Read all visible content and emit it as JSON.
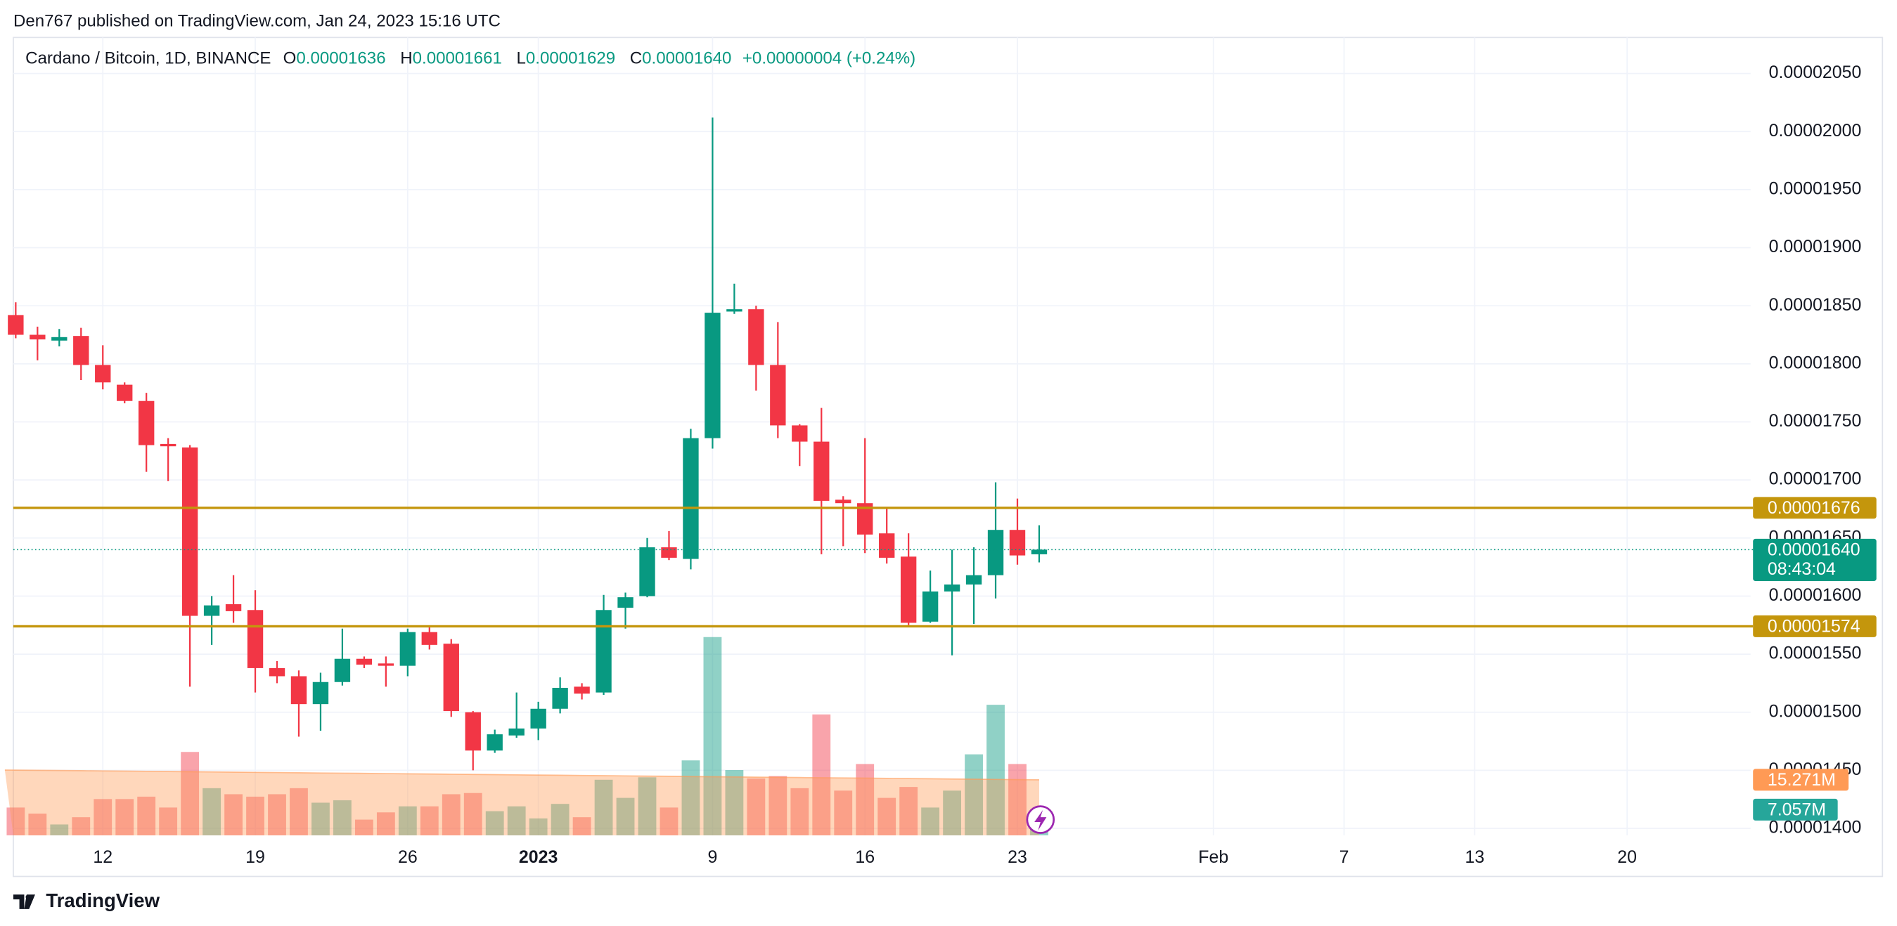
{
  "header": {
    "text": "Den767 published on TradingView.com, Jan 24, 2023 15:16 UTC"
  },
  "footer": {
    "brand": "TradingView"
  },
  "chart_data": {
    "type": "candlestick",
    "legend": {
      "symbol": "Cardano / Bitcoin, 1D, BINANCE",
      "items": [
        {
          "key": "O",
          "value": "0.00001636"
        },
        {
          "key": "H",
          "value": "0.00001661"
        },
        {
          "key": "L",
          "value": "0.00001629"
        },
        {
          "key": "C",
          "value": "0.00001640"
        }
      ],
      "change": "+0.00000004 (+0.24%)"
    },
    "colors": {
      "up": "#089981",
      "down": "#f23645",
      "level": "#c4960c",
      "volume_ma": "#ff9a55"
    },
    "grid": true,
    "x": [
      0,
      1,
      2,
      3,
      4,
      5,
      6,
      7,
      8,
      9,
      10,
      11,
      12,
      13,
      14,
      15,
      16,
      17,
      18,
      19,
      20,
      21,
      22,
      23,
      24,
      25,
      26,
      27,
      28,
      29,
      30,
      31,
      32,
      33,
      34,
      35,
      36,
      37,
      38,
      39,
      40,
      41,
      42,
      43,
      44,
      45,
      46,
      47
    ],
    "open": [
      1.842e-05,
      1.825e-05,
      1.82e-05,
      1.824e-05,
      1.799e-05,
      1.782e-05,
      1.768e-05,
      1.731e-05,
      1.728e-05,
      1.583e-05,
      1.593e-05,
      1.588e-05,
      1.538e-05,
      1.531e-05,
      1.507e-05,
      1.526e-05,
      1.546e-05,
      1.542e-05,
      1.54e-05,
      1.569e-05,
      1.559e-05,
      1.5e-05,
      1.467e-05,
      1.48e-05,
      1.486e-05,
      1.503e-05,
      1.522e-05,
      1.517e-05,
      1.59e-05,
      1.6e-05,
      1.642e-05,
      1.632e-05,
      1.736e-05,
      1.845e-05,
      1.847e-05,
      1.799e-05,
      1.747e-05,
      1.733e-05,
      1.683e-05,
      1.68e-05,
      1.654e-05,
      1.634e-05,
      1.578e-05,
      1.604e-05,
      1.61e-05,
      1.618e-05,
      1.657e-05,
      1.636e-05
    ],
    "high": [
      1.853e-05,
      1.832e-05,
      1.83e-05,
      1.831e-05,
      1.816e-05,
      1.784e-05,
      1.775e-05,
      1.736e-05,
      1.73e-05,
      1.6e-05,
      1.618e-05,
      1.605e-05,
      1.544e-05,
      1.536e-05,
      1.534e-05,
      1.572e-05,
      1.548e-05,
      1.548e-05,
      1.572e-05,
      1.573e-05,
      1.563e-05,
      1.501e-05,
      1.485e-05,
      1.517e-05,
      1.509e-05,
      1.53e-05,
      1.525e-05,
      1.601e-05,
      1.603e-05,
      1.65e-05,
      1.656e-05,
      1.744e-05,
      2.012e-05,
      1.869e-05,
      1.85e-05,
      1.836e-05,
      1.748e-05,
      1.762e-05,
      1.686e-05,
      1.736e-05,
      1.676e-05,
      1.654e-05,
      1.622e-05,
      1.64e-05,
      1.642e-05,
      1.698e-05,
      1.684e-05,
      1.661e-05
    ],
    "low": [
      1.822e-05,
      1.803e-05,
      1.815e-05,
      1.786e-05,
      1.778e-05,
      1.766e-05,
      1.707e-05,
      1.699e-05,
      1.522e-05,
      1.558e-05,
      1.577e-05,
      1.517e-05,
      1.525e-05,
      1.479e-05,
      1.484e-05,
      1.523e-05,
      1.538e-05,
      1.522e-05,
      1.531e-05,
      1.554e-05,
      1.496e-05,
      1.45e-05,
      1.465e-05,
      1.478e-05,
      1.476e-05,
      1.499e-05,
      1.511e-05,
      1.515e-05,
      1.572e-05,
      1.599e-05,
      1.631e-05,
      1.623e-05,
      1.727e-05,
      1.843e-05,
      1.777e-05,
      1.736e-05,
      1.712e-05,
      1.636e-05,
      1.643e-05,
      1.637e-05,
      1.628e-05,
      1.575e-05,
      1.577e-05,
      1.549e-05,
      1.576e-05,
      1.598e-05,
      1.627e-05,
      1.629e-05
    ],
    "close": [
      1.825e-05,
      1.821e-05,
      1.823e-05,
      1.799e-05,
      1.784e-05,
      1.768e-05,
      1.73e-05,
      1.729e-05,
      1.583e-05,
      1.592e-05,
      1.587e-05,
      1.538e-05,
      1.531e-05,
      1.507e-05,
      1.526e-05,
      1.546e-05,
      1.541e-05,
      1.54e-05,
      1.569e-05,
      1.558e-05,
      1.501e-05,
      1.467e-05,
      1.481e-05,
      1.486e-05,
      1.503e-05,
      1.521e-05,
      1.516e-05,
      1.588e-05,
      1.599e-05,
      1.642e-05,
      1.633e-05,
      1.736e-05,
      1.844e-05,
      1.847e-05,
      1.799e-05,
      1.747e-05,
      1.733e-05,
      1.682e-05,
      1.68e-05,
      1.653e-05,
      1.633e-05,
      1.577e-05,
      1.604e-05,
      1.61e-05,
      1.618e-05,
      1.657e-05,
      1.635e-05,
      1.64e-05
    ],
    "volume": [
      7.64,
      5.98,
      2.99,
      4.98,
      9.97,
      9.97,
      10.63,
      7.64,
      22.92,
      12.96,
      11.3,
      10.63,
      11.3,
      12.96,
      8.97,
      9.63,
      4.32,
      6.31,
      7.97,
      7.97,
      11.3,
      11.63,
      6.64,
      7.97,
      4.65,
      8.64,
      4.98,
      15.28,
      10.3,
      15.95,
      7.64,
      20.6,
      54.49,
      17.94,
      15.61,
      16.28,
      12.96,
      33.22,
      12.29,
      19.6,
      10.3,
      13.29,
      7.64,
      12.29,
      22.26,
      35.88,
      19.6,
      7.057
    ],
    "volume_ma": [
      17.94,
      17.88,
      17.83,
      17.77,
      17.71,
      17.66,
      17.6,
      17.54,
      17.48,
      17.43,
      17.37,
      17.31,
      17.26,
      17.2,
      17.14,
      17.09,
      17.03,
      16.97,
      16.91,
      16.86,
      16.8,
      16.74,
      16.69,
      16.63,
      16.57,
      16.52,
      16.46,
      16.4,
      16.34,
      16.29,
      16.23,
      16.17,
      16.12,
      16.06,
      16.0,
      15.95,
      15.89,
      15.83,
      15.77,
      15.72,
      15.66,
      15.6,
      15.55,
      15.49,
      15.43,
      15.38,
      15.32,
      15.271
    ],
    "volume_ma_badge": {
      "value": 15.271,
      "label": "15.271M"
    },
    "volume_badge": {
      "value": 7.057,
      "label": "7.057M"
    },
    "levels": [
      1.676e-05,
      1.574e-05
    ],
    "last_price": {
      "value": 1.64e-05,
      "label": "0.00001640"
    },
    "countdown": "08:43:04",
    "xlim": [
      -0.11,
      79.67
    ],
    "ylim": [
      1.394e-05,
      2.081e-05
    ],
    "xticks": [
      {
        "value": 4,
        "label": "12"
      },
      {
        "value": 11,
        "label": "19"
      },
      {
        "value": 18,
        "label": "26"
      },
      {
        "value": 24,
        "label": "2023",
        "bold": true
      },
      {
        "value": 32,
        "label": "9"
      },
      {
        "value": 39,
        "label": "16"
      },
      {
        "value": 46,
        "label": "23"
      },
      {
        "value": 55,
        "label": "Feb"
      },
      {
        "value": 61,
        "label": "7"
      },
      {
        "value": 67,
        "label": "13"
      },
      {
        "value": 74,
        "label": "20"
      }
    ],
    "yticks": [
      {
        "value": 1.4e-05,
        "label": "0.00001400"
      },
      {
        "value": 1.45e-05,
        "label": "0.00001450"
      },
      {
        "value": 1.5e-05,
        "label": "0.00001500"
      },
      {
        "value": 1.55e-05,
        "label": "0.00001550"
      },
      {
        "value": 1.6e-05,
        "label": "0.00001600"
      },
      {
        "value": 1.65e-05,
        "label": "0.00001650"
      },
      {
        "value": 1.7e-05,
        "label": "0.00001700"
      },
      {
        "value": 1.75e-05,
        "label": "0.00001750"
      },
      {
        "value": 1.8e-05,
        "label": "0.00001800"
      },
      {
        "value": 1.85e-05,
        "label": "0.00001850"
      },
      {
        "value": 1.9e-05,
        "label": "0.00001900"
      },
      {
        "value": 1.95e-05,
        "label": "0.00001950"
      },
      {
        "value": 2e-05,
        "label": "0.00002000"
      },
      {
        "value": 2.05e-05,
        "label": "0.00002050"
      }
    ]
  }
}
